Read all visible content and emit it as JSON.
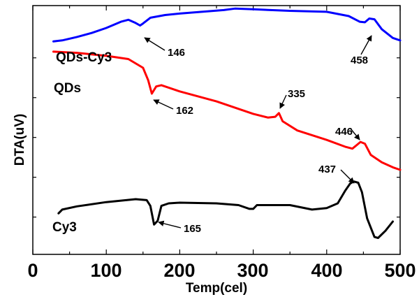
{
  "chart_data": {
    "type": "line",
    "xlabel": "Temp(cel)",
    "ylabel": "DTA(uV)",
    "xlim": [
      0,
      500
    ],
    "ylim": [
      0,
      100
    ],
    "x_ticks": [
      "0",
      "100",
      "200",
      "300",
      "400",
      "500"
    ],
    "y_ticks_labeled": false,
    "grid": false,
    "series": [
      {
        "name": "QDs-Cy3",
        "color": "#0000ff",
        "points": [
          [
            28,
            85.6
          ],
          [
            40,
            86
          ],
          [
            60,
            87.4
          ],
          [
            80,
            89
          ],
          [
            100,
            91
          ],
          [
            120,
            93.5
          ],
          [
            130,
            94.3
          ],
          [
            140,
            93
          ],
          [
            146,
            92
          ],
          [
            150,
            92.8
          ],
          [
            160,
            95.1
          ],
          [
            180,
            96.2
          ],
          [
            200,
            96.8
          ],
          [
            230,
            97.5
          ],
          [
            260,
            98.2
          ],
          [
            275,
            98.8
          ],
          [
            300,
            98.5
          ],
          [
            350,
            97.9
          ],
          [
            400,
            97.5
          ],
          [
            430,
            95.8
          ],
          [
            445,
            93.5
          ],
          [
            452,
            93.3
          ],
          [
            458,
            94.8
          ],
          [
            465,
            94.5
          ],
          [
            475,
            90.5
          ],
          [
            490,
            87
          ],
          [
            500,
            86
          ]
        ]
      },
      {
        "name": "QDs",
        "color": "#ff0000",
        "points": [
          [
            28,
            81.5
          ],
          [
            60,
            81
          ],
          [
            100,
            79.8
          ],
          [
            130,
            78.5
          ],
          [
            150,
            75
          ],
          [
            157,
            70
          ],
          [
            162,
            64.6
          ],
          [
            168,
            67.5
          ],
          [
            175,
            68
          ],
          [
            200,
            65.5
          ],
          [
            250,
            61.5
          ],
          [
            300,
            56.5
          ],
          [
            320,
            55
          ],
          [
            330,
            55.3
          ],
          [
            335,
            56.8
          ],
          [
            340,
            53.5
          ],
          [
            360,
            49.8
          ],
          [
            400,
            46
          ],
          [
            425,
            43.3
          ],
          [
            435,
            42.5
          ],
          [
            446,
            45.2
          ],
          [
            452,
            44.5
          ],
          [
            460,
            40
          ],
          [
            475,
            37
          ],
          [
            490,
            35
          ],
          [
            500,
            34
          ]
        ]
      },
      {
        "name": "Cy3",
        "color": "#000000",
        "points": [
          [
            35,
            16.5
          ],
          [
            40,
            18
          ],
          [
            60,
            19.3
          ],
          [
            100,
            21
          ],
          [
            140,
            22.2
          ],
          [
            155,
            21.8
          ],
          [
            160,
            19.5
          ],
          [
            165,
            12
          ],
          [
            170,
            13.5
          ],
          [
            175,
            19.5
          ],
          [
            185,
            20.5
          ],
          [
            200,
            20.8
          ],
          [
            250,
            20.5
          ],
          [
            280,
            19.8
          ],
          [
            295,
            18.3
          ],
          [
            300,
            18.3
          ],
          [
            305,
            19.8
          ],
          [
            320,
            19.8
          ],
          [
            350,
            19.8
          ],
          [
            380,
            18
          ],
          [
            400,
            18.6
          ],
          [
            415,
            20.5
          ],
          [
            425,
            25.5
          ],
          [
            432,
            28.5
          ],
          [
            437,
            29.3
          ],
          [
            443,
            28.8
          ],
          [
            448,
            25
          ],
          [
            455,
            14.5
          ],
          [
            465,
            7
          ],
          [
            470,
            6.6
          ],
          [
            480,
            9.5
          ],
          [
            490,
            13.2
          ]
        ]
      }
    ],
    "series_labels": [
      "QDs-Cy3",
      "QDs",
      "Cy3"
    ],
    "annotations": [
      "146",
      "458",
      "162",
      "335",
      "446",
      "165",
      "437"
    ]
  }
}
